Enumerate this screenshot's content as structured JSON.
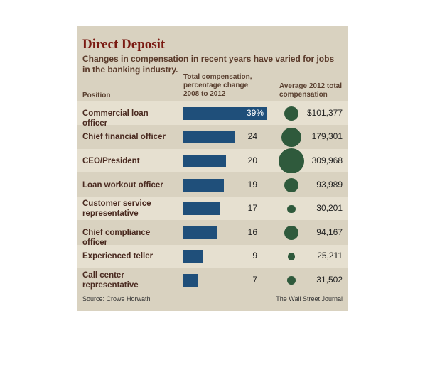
{
  "chart_data": {
    "type": "bar",
    "title": "Direct Deposit",
    "subtitle": "Changes in compensation in recent years have varied for jobs in the banking industry.",
    "columns": {
      "position": "Position",
      "change": "Total compensation, percentage change 2008 to 2012",
      "compensation": "Average 2012 total compensation"
    },
    "categories": [
      "Commercial loan officer",
      "Chief financial officer",
      "CEO/President",
      "Loan workout officer",
      "Customer service representative",
      "Chief compliance officer",
      "Experienced teller",
      "Call center representative"
    ],
    "values": [
      39,
      24,
      20,
      19,
      17,
      16,
      9,
      7
    ],
    "value_labels": [
      "39%",
      "24",
      "20",
      "19",
      "17",
      "16",
      "9",
      "7"
    ],
    "color": "#1f4f7a",
    "bubbles": {
      "values": [
        101377,
        179301,
        309968,
        93989,
        30201,
        94167,
        25211,
        31502
      ],
      "value_labels": [
        "$101,377",
        "179,301",
        "309,968",
        "93,989",
        "30,201",
        "94,167",
        "25,211",
        "31,502"
      ],
      "color": "#2f5a3c"
    },
    "source": "Source: Crowe Horwath",
    "credit": "The Wall Street Journal"
  }
}
